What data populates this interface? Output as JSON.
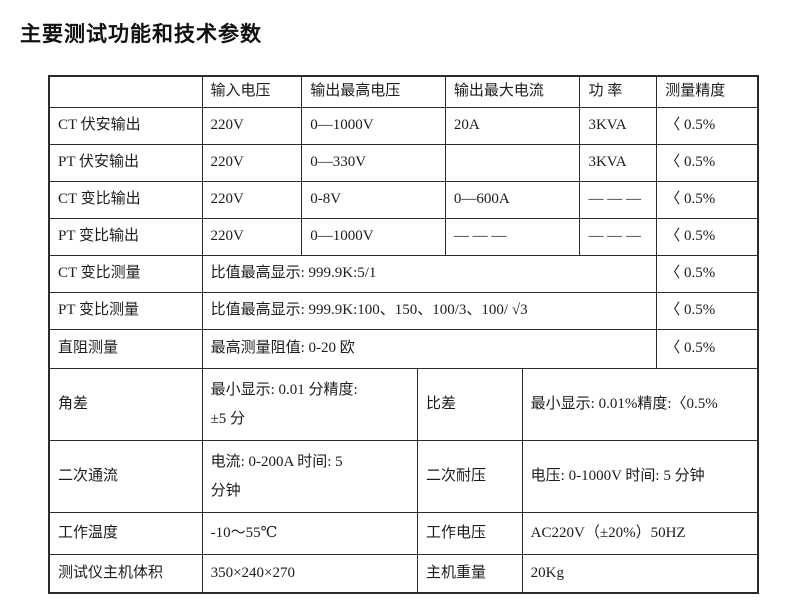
{
  "page": {
    "title": "主要测试功能和技术参数"
  },
  "table": {
    "header": {
      "corner": "",
      "input_voltage": "输入电压",
      "max_output_voltage": "输出最高电压",
      "max_output_current": "输出最大电流",
      "power": "功 率",
      "accuracy": "测量精度"
    },
    "output_rows": [
      {
        "label": "CT 伏安输出",
        "input_voltage": "220V",
        "max_voltage": "0—1000V",
        "max_current": "20A",
        "power": "3KVA",
        "accuracy": "〈 0.5%"
      },
      {
        "label": "PT 伏安输出",
        "input_voltage": "220V",
        "max_voltage": "0—330V",
        "max_current": "",
        "power": "3KVA",
        "accuracy": "〈 0.5%"
      },
      {
        "label": "CT 变比输出",
        "input_voltage": "220V",
        "max_voltage": "0-8V",
        "max_current": "0—600A",
        "power": "— — —",
        "accuracy": "〈 0.5%"
      },
      {
        "label": "PT 变比输出",
        "input_voltage": "220V",
        "max_voltage": "0—1000V",
        "max_current": "— — —",
        "power": "— — —",
        "accuracy": "〈 0.5%"
      }
    ],
    "measure_rows": [
      {
        "label": "CT 变比测量",
        "value": "比值最高显示: 999.9K:5/1",
        "accuracy": "〈 0.5%"
      },
      {
        "label": "PT 变比测量",
        "value": "比值最高显示: 999.9K:100、150、100/3、100/ √3",
        "accuracy": "〈 0.5%"
      },
      {
        "label": "直阻测量",
        "value": "最高测量阻值: 0-20 欧",
        "accuracy": "〈 0.5%"
      }
    ],
    "pair_rows": [
      {
        "label1": "角差",
        "value1": "最小显示: 0.01 分精度:\n±5 分",
        "label2": "比差",
        "value2": "最小显示: 0.01%精度:〈0.5%"
      },
      {
        "label1": "二次通流",
        "value1": "电流: 0-200A 时间: 5\n分钟",
        "label2": "二次耐压",
        "value2": "电压: 0-1000V 时间: 5 分钟"
      },
      {
        "label1": "工作温度",
        "value1": "-10～55℃",
        "label2": "工作电压",
        "value2": "AC220V（±20%）50HZ"
      },
      {
        "label1": "测试仪主机体积",
        "value1": "350×240×270",
        "label2": "主机重量",
        "value2": "20Kg"
      }
    ]
  }
}
